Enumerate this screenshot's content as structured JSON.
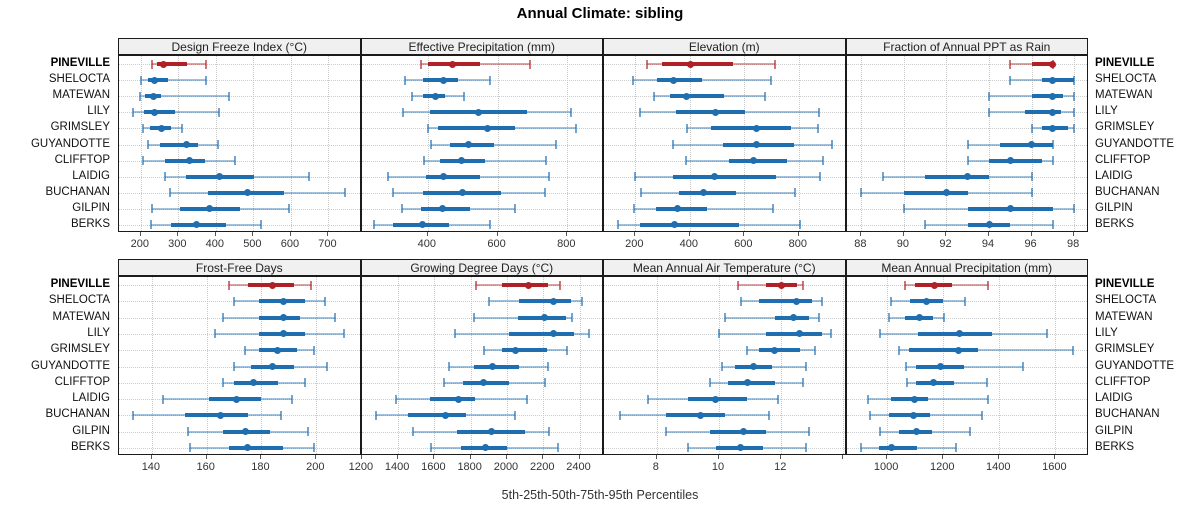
{
  "header": {
    "title": "Annual Climate: sibling"
  },
  "footer": {
    "caption": "5th-25th-50th-75th-95th Percentiles"
  },
  "colors": {
    "highlight": "#af2126",
    "highlight_light": "rgba(175,33,38,0.42)",
    "highlight_cap": "rgba(175,33,38,0.62)",
    "normal": "#1f6eb0",
    "normal_light": "rgba(31,110,176,0.42)",
    "normal_cap": "rgba(31,110,176,0.62)",
    "strip_bg": "#f0f0f0",
    "panel_border": "#1b1b1b",
    "grid": "#c9c9c9",
    "tick": "#555555",
    "text": "#111111"
  },
  "chart_data": {
    "type": "dotplot",
    "subtype": "percentile-intervals",
    "title": "Annual Climate: sibling",
    "xlabel": "5th-25th-50th-75th-95th Percentiles",
    "percentiles": [
      5,
      25,
      50,
      75,
      95
    ],
    "legend": "none",
    "grid": "dotted",
    "layout_grid": [
      2,
      4
    ],
    "highlight_category": "PINEVILLE",
    "categories": [
      "PINEVILLE",
      "SHELOCTA",
      "MATEWAN",
      "LILY",
      "GRIMSLEY",
      "GUYANDOTTE",
      "CLIFFTOP",
      "LAIDIG",
      "BUCHANAN",
      "GILPIN",
      "BERKS"
    ],
    "panels": [
      {
        "title": "Design Freeze Index (°C)",
        "xlim": [
          142,
          788
        ],
        "ticks": [
          200,
          300,
          400,
          500,
          600,
          700
        ],
        "tick_labels": [
          "200",
          "300",
          "400",
          "500",
          "600",
          "700"
        ],
        "rows": [
          [
            230,
            242,
            260,
            323,
            375
          ],
          [
            200,
            219,
            237,
            273,
            374
          ],
          [
            198,
            211,
            233,
            255,
            435
          ],
          [
            180,
            209,
            237,
            290,
            408
          ],
          [
            207,
            225,
            255,
            281,
            310
          ],
          [
            219,
            250,
            321,
            352,
            406
          ],
          [
            207,
            264,
            330,
            370,
            450
          ],
          [
            264,
            321,
            410,
            501,
            648
          ],
          [
            278,
            379,
            484,
            582,
            745
          ],
          [
            230,
            305,
            384,
            464,
            595
          ],
          [
            228,
            281,
            349,
            428,
            519
          ]
        ]
      },
      {
        "title": "Effective Precipitation (mm)",
        "xlim": [
          210,
          905
        ],
        "ticks": [
          400,
          600,
          800
        ],
        "tick_labels": [
          "400",
          "600",
          "800"
        ],
        "rows": [
          [
            380,
            402,
            470,
            549,
            692
          ],
          [
            335,
            386,
            444,
            486,
            579
          ],
          [
            356,
            386,
            421,
            449,
            505
          ],
          [
            330,
            405,
            545,
            685,
            810
          ],
          [
            401,
            429,
            571,
            650,
            826
          ],
          [
            410,
            463,
            516,
            589,
            767
          ],
          [
            390,
            434,
            496,
            565,
            738
          ],
          [
            287,
            394,
            446,
            550,
            748
          ],
          [
            301,
            386,
            500,
            610,
            735
          ],
          [
            326,
            381,
            443,
            520,
            649
          ],
          [
            246,
            301,
            384,
            461,
            579
          ]
        ]
      },
      {
        "title": "Elevation (m)",
        "xlim": [
          85,
          975
        ],
        "ticks": [
          200,
          400,
          600,
          800
        ],
        "tick_labels": [
          "200",
          "400",
          "600",
          "800"
        ],
        "rows": [
          [
            243,
            298,
            401,
            560,
            712
          ],
          [
            190,
            280,
            339,
            445,
            699
          ],
          [
            267,
            329,
            388,
            525,
            675
          ],
          [
            216,
            350,
            494,
            604,
            874
          ],
          [
            391,
            476,
            645,
            771,
            870
          ],
          [
            339,
            521,
            646,
            781,
            921
          ],
          [
            385,
            545,
            635,
            755,
            890
          ],
          [
            200,
            339,
            491,
            718,
            878
          ],
          [
            221,
            359,
            451,
            568,
            786
          ],
          [
            194,
            277,
            356,
            464,
            706
          ],
          [
            135,
            216,
            343,
            580,
            806
          ]
        ]
      },
      {
        "title": "Fraction of Annual PPT as Rain",
        "xlim": [
          87.3,
          98.7
        ],
        "ticks": [
          88,
          90,
          92,
          94,
          96,
          98
        ],
        "tick_labels": [
          "88",
          "90",
          "92",
          "94",
          "96",
          "98"
        ],
        "rows": [
          [
            95,
            96,
            97,
            97,
            97
          ],
          [
            95,
            96.5,
            97,
            98,
            98
          ],
          [
            94,
            96,
            97,
            97.5,
            98
          ],
          [
            94,
            95.7,
            97,
            97.4,
            98
          ],
          [
            96,
            96.5,
            97,
            97.7,
            98
          ],
          [
            93,
            94.5,
            96,
            97,
            97
          ],
          [
            93,
            94,
            95,
            96.5,
            97
          ],
          [
            89,
            91,
            93,
            94,
            96
          ],
          [
            88,
            90,
            92,
            93,
            96
          ],
          [
            90,
            93,
            95,
            97,
            98
          ],
          [
            91,
            93,
            94,
            95,
            97
          ]
        ]
      },
      {
        "title": "Frost-Free Days",
        "xlim": [
          128,
          216.5
        ],
        "ticks": [
          140,
          160,
          180,
          200
        ],
        "tick_labels": [
          "140",
          "160",
          "180",
          "200"
        ],
        "rows": [
          [
            168,
            175,
            184,
            192,
            198
          ],
          [
            170,
            179,
            188,
            196,
            203
          ],
          [
            166,
            179,
            188,
            194,
            207
          ],
          [
            163,
            179,
            188,
            196,
            210
          ],
          [
            174,
            179,
            186,
            193,
            199
          ],
          [
            170,
            176,
            184,
            192,
            204
          ],
          [
            166,
            170,
            177,
            186,
            196
          ],
          [
            144,
            161,
            171,
            180,
            191
          ],
          [
            133,
            152,
            165,
            175,
            187
          ],
          [
            153,
            166,
            174,
            183,
            197
          ],
          [
            154,
            168,
            175,
            188,
            199
          ]
        ]
      },
      {
        "title": "Growing Degree Days (°C)",
        "xlim": [
          1198,
          2535
        ],
        "ticks": [
          1200,
          1400,
          1600,
          1800,
          2000,
          2200,
          2400
        ],
        "tick_labels": [
          "1200",
          "1400",
          "1600",
          "1800",
          "2000",
          "2200",
          "2400"
        ],
        "rows": [
          [
            1832,
            1975,
            2120,
            2228,
            2291
          ],
          [
            1903,
            2065,
            2259,
            2351,
            2412
          ],
          [
            1821,
            2062,
            2207,
            2323,
            2360
          ],
          [
            1712,
            2010,
            2255,
            2369,
            2452
          ],
          [
            1872,
            1974,
            2047,
            2222,
            2333
          ],
          [
            1682,
            1817,
            1918,
            2065,
            2228
          ],
          [
            1651,
            1758,
            1872,
            2014,
            2209
          ],
          [
            1388,
            1573,
            1734,
            1826,
            2112
          ],
          [
            1279,
            1457,
            1660,
            1775,
            2047
          ],
          [
            1480,
            1725,
            1912,
            2100,
            2230
          ],
          [
            1583,
            1749,
            1881,
            2001,
            2283
          ]
        ]
      },
      {
        "title": "Mean Annual Air Temperature (°C)",
        "xlim": [
          6.3,
          14.1
        ],
        "ticks": [
          8,
          10,
          12,
          14
        ],
        "tick_labels": [
          "8",
          "10",
          "12",
          ""
        ],
        "rows": [
          [
            10.6,
            11.5,
            12.0,
            12.5,
            12.7
          ],
          [
            10.7,
            11.3,
            12.5,
            13.0,
            13.3
          ],
          [
            10.2,
            11.8,
            12.4,
            12.9,
            13.2
          ],
          [
            10.0,
            11.5,
            12.6,
            13.3,
            13.6
          ],
          [
            10.9,
            11.3,
            11.8,
            12.6,
            13.1
          ],
          [
            10.1,
            10.5,
            11.1,
            11.7,
            12.8
          ],
          [
            9.7,
            10.3,
            10.9,
            11.8,
            12.7
          ],
          [
            7.7,
            9.0,
            9.9,
            10.9,
            11.9
          ],
          [
            6.8,
            8.3,
            9.4,
            10.2,
            11.6
          ],
          [
            8.3,
            9.7,
            10.8,
            11.5,
            12.9
          ],
          [
            9.0,
            9.9,
            10.7,
            11.4,
            12.8
          ]
        ]
      },
      {
        "title": "Mean Annual Precipitation (mm)",
        "xlim": [
          855,
          1720
        ],
        "ticks": [
          1000,
          1200,
          1400,
          1600
        ],
        "tick_labels": [
          "1000",
          "1200",
          "1400",
          "1600"
        ],
        "rows": [
          [
            1065,
            1100,
            1168,
            1230,
            1358
          ],
          [
            1012,
            1083,
            1140,
            1201,
            1279
          ],
          [
            1008,
            1065,
            1116,
            1164,
            1204
          ],
          [
            976,
            1110,
            1258,
            1374,
            1569
          ],
          [
            1041,
            1077,
            1255,
            1324,
            1664
          ],
          [
            1069,
            1104,
            1192,
            1273,
            1486
          ],
          [
            1071,
            1104,
            1164,
            1237,
            1355
          ],
          [
            932,
            1012,
            1097,
            1145,
            1360
          ],
          [
            938,
            1006,
            1095,
            1152,
            1338
          ],
          [
            974,
            1041,
            1104,
            1160,
            1296
          ],
          [
            907,
            970,
            1014,
            1107,
            1247
          ]
        ]
      }
    ]
  }
}
